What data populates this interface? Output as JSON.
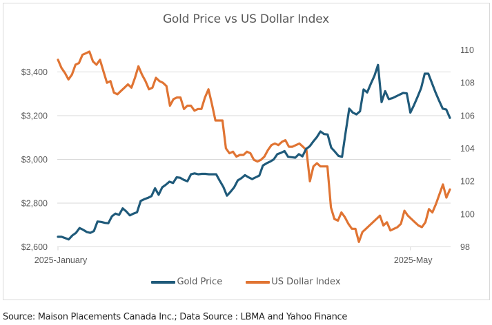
{
  "chart_data": {
    "type": "line",
    "title": "Gold Price vs US Dollar Index",
    "xlabel": "",
    "ylabel": "",
    "x_tick_labels": [
      "2025-January",
      "2025-May"
    ],
    "x_tick_positions": [
      0,
      81
    ],
    "y_left": {
      "ticks": [
        "$2,600",
        "$2,800",
        "$3,000",
        "$3,200",
        "$3,400"
      ],
      "values": [
        2600,
        2800,
        3000,
        3200,
        3400
      ],
      "ylim": [
        2600,
        3500
      ]
    },
    "y_right": {
      "ticks": [
        "98",
        "100",
        "102",
        "104",
        "106",
        "108",
        "110"
      ],
      "values": [
        98,
        100,
        102,
        104,
        106,
        108,
        110
      ],
      "ylim": [
        98,
        110
      ]
    },
    "grid": true,
    "legend_position": "bottom",
    "series": [
      {
        "name": "Gold Price",
        "axis": "left",
        "color": "#1f5a7a",
        "values": [
          2646,
          2646,
          2640,
          2634,
          2652,
          2664,
          2686,
          2678,
          2668,
          2664,
          2672,
          2716,
          2714,
          2710,
          2708,
          2740,
          2752,
          2746,
          2776,
          2762,
          2744,
          2752,
          2758,
          2810,
          2818,
          2824,
          2832,
          2868,
          2838,
          2872,
          2884,
          2898,
          2892,
          2918,
          2916,
          2906,
          2900,
          2932,
          2936,
          2932,
          2934,
          2934,
          2932,
          2932,
          2932,
          2902,
          2874,
          2834,
          2852,
          2872,
          2904,
          2914,
          2928,
          2918,
          2910,
          2918,
          2926,
          2972,
          2982,
          2990,
          3000,
          3024,
          3030,
          3038,
          3012,
          3010,
          3008,
          3024,
          3014,
          3048,
          3060,
          3082,
          3102,
          3128,
          3116,
          3114,
          3054,
          3036,
          3016,
          3012,
          3124,
          3232,
          3214,
          3206,
          3220,
          3320,
          3306,
          3346,
          3382,
          3432,
          3262,
          3312,
          3276,
          3280,
          3288,
          3296,
          3304,
          3302,
          3214,
          3248,
          3286,
          3326,
          3392,
          3392,
          3350,
          3306,
          3268,
          3232,
          3228,
          3190
        ]
      },
      {
        "name": "US Dollar Index",
        "axis": "right",
        "color": "#e07433",
        "values": [
          109.4,
          108.9,
          108.6,
          108.2,
          108.5,
          109.1,
          109.2,
          109.7,
          109.8,
          109.9,
          109.3,
          109.1,
          109.4,
          108.7,
          108.0,
          108.1,
          107.4,
          107.3,
          107.5,
          107.7,
          107.9,
          107.7,
          108.3,
          109.0,
          108.5,
          108.1,
          107.6,
          107.7,
          108.3,
          108.1,
          108.0,
          107.8,
          106.6,
          107.0,
          107.1,
          107.1,
          106.4,
          106.6,
          106.6,
          106.3,
          106.4,
          106.4,
          107.1,
          107.6,
          106.7,
          105.7,
          105.7,
          105.7,
          104.0,
          103.7,
          103.8,
          103.5,
          103.6,
          103.6,
          103.8,
          103.7,
          103.3,
          103.2,
          103.3,
          103.5,
          103.9,
          104.2,
          104.3,
          104.2,
          104.4,
          104.5,
          104.1,
          104.1,
          104.2,
          104.3,
          104.1,
          103.9,
          102.0,
          102.9,
          103.1,
          102.9,
          102.9,
          102.9,
          100.4,
          99.7,
          99.6,
          100.1,
          99.8,
          99.4,
          99.1,
          99.1,
          98.3,
          98.9,
          99.1,
          99.3,
          99.5,
          99.7,
          99.9,
          99.3,
          99.5,
          99.0,
          99.1,
          99.2,
          99.4,
          100.2,
          99.9,
          99.7,
          99.5,
          99.3,
          99.2,
          99.5,
          100.3,
          100.1,
          100.6,
          101.2,
          101.8,
          101.0,
          101.5
        ]
      }
    ]
  },
  "legend": {
    "items": [
      {
        "label": "Gold Price",
        "color": "#1f5a7a"
      },
      {
        "label": "US Dollar Index",
        "color": "#e07433"
      }
    ]
  },
  "footer": {
    "source": "Source: Maison Placements Canada Inc.; Data Source : LBMA and Yahoo Finance"
  }
}
